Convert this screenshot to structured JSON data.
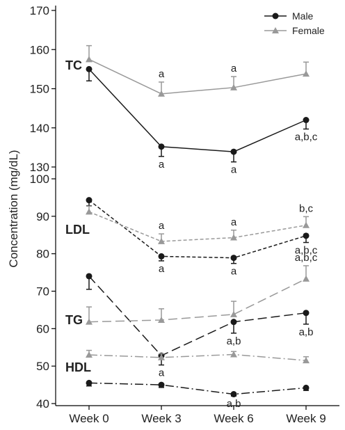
{
  "chart_data": {
    "type": "line",
    "ylabel": "Concentration (mg/dL)",
    "categories": [
      "Week 0",
      "Week 3",
      "Week 6",
      "Week 9"
    ],
    "legend": {
      "placement": "top-right",
      "entries": [
        {
          "name": "Male",
          "marker": "circle",
          "color": "#1a1a1a"
        },
        {
          "name": "Female",
          "marker": "triangle",
          "color": "#999999"
        }
      ]
    },
    "upper_panel": {
      "ylim": [
        130,
        170
      ],
      "yticks": [
        "130",
        "140",
        "150",
        "160",
        "170"
      ],
      "groups": [
        {
          "label": "TC",
          "series": [
            {
              "name": "Male",
              "line": "solid",
              "values": [
                155,
                135.2,
                133.9,
                142
              ],
              "error_up": [
                0,
                0,
                0,
                0
              ],
              "error_down": [
                3,
                2.5,
                2.6,
                2.3
              ],
              "annotations": [
                "",
                "a",
                "a",
                "a,b,c"
              ],
              "annotation_side": "below"
            },
            {
              "name": "Female",
              "line": "solid",
              "values": [
                157.5,
                148.7,
                150.3,
                153.8
              ],
              "error_up": [
                3.5,
                3,
                2.8,
                3
              ],
              "error_down": [
                0,
                0,
                0,
                0
              ],
              "annotations": [
                "",
                "a",
                "a",
                ""
              ],
              "annotation_side": "above"
            }
          ]
        }
      ]
    },
    "lower_panel": {
      "ylim": [
        40,
        100
      ],
      "yticks": [
        "40",
        "50",
        "60",
        "70",
        "80",
        "90",
        "100"
      ],
      "groups": [
        {
          "label": "LDL",
          "series": [
            {
              "name": "Male",
              "line": "dotted",
              "values": [
                94.3,
                79.3,
                78.9,
                84.8
              ],
              "error_up": [
                0,
                0,
                0,
                0
              ],
              "error_down": [
                1.5,
                1.2,
                1.5,
                1.8
              ],
              "annotations": [
                "",
                "a",
                "a",
                "a,b,c"
              ],
              "annotation_side": "below"
            },
            {
              "name": "Female",
              "line": "dotted",
              "values": [
                91.2,
                83.3,
                84.3,
                87.6
              ],
              "error_up": [
                1.5,
                2,
                2,
                2.3
              ],
              "error_down": [
                0,
                0,
                0,
                0
              ],
              "annotations": [
                "",
                "a",
                "a",
                "b,c"
              ],
              "annotation_side": "above"
            }
          ]
        },
        {
          "label": "TG",
          "series": [
            {
              "name": "Male",
              "line": "long-dash",
              "values": [
                74,
                52.8,
                61.8,
                64.2
              ],
              "error_up": [
                0,
                0,
                0,
                0
              ],
              "error_down": [
                3.5,
                2.5,
                3,
                3
              ],
              "annotations": [
                "",
                "a",
                "a,b",
                "a,b"
              ],
              "annotation_side": "below"
            },
            {
              "name": "Female",
              "line": "long-dash",
              "values": [
                61.8,
                62.3,
                63.8,
                73.3
              ],
              "error_up": [
                4,
                3,
                3.5,
                3.5
              ],
              "error_down": [
                0,
                0,
                0,
                0
              ],
              "annotations": [
                "",
                "",
                "",
                "a,b,c"
              ],
              "annotation_side": "above"
            }
          ]
        },
        {
          "label": "HDL",
          "series": [
            {
              "name": "Male",
              "line": "dash-dot",
              "values": [
                45.5,
                45,
                42.5,
                44.2
              ],
              "error_up": [
                0,
                0,
                0,
                0
              ],
              "error_down": [
                0.8,
                0.7,
                0.5,
                0.7
              ],
              "annotations": [
                "",
                "",
                "a,b",
                ""
              ],
              "annotation_side": "below"
            },
            {
              "name": "Female",
              "line": "dash-dot",
              "values": [
                53,
                52.3,
                53.1,
                51.5
              ],
              "error_up": [
                1.2,
                1,
                0.8,
                1
              ],
              "error_down": [
                0,
                0,
                0,
                0
              ],
              "annotations": [
                "",
                "",
                "",
                ""
              ],
              "annotation_side": "above"
            }
          ]
        }
      ]
    }
  }
}
